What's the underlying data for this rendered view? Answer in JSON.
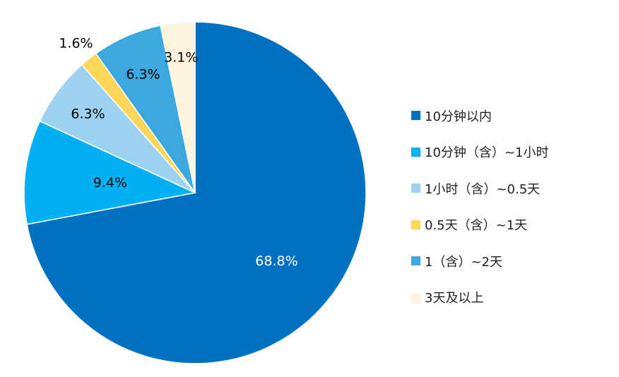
{
  "chart_data": {
    "type": "pie",
    "title": "",
    "start": "top",
    "direction": "clockwise",
    "categories": [
      "10分钟以内",
      "10分钟（含）~1小时",
      "1小时（含）~0.5天",
      "0.5天（含）~1天",
      "1（含）~2天",
      "3天及以上"
    ],
    "values": [
      68.8,
      9.4,
      6.3,
      1.6,
      6.3,
      3.1
    ],
    "labels": [
      "68.8%",
      "9.4%",
      "6.3%",
      "1.6%",
      "6.3%",
      "3.1%"
    ],
    "colors": [
      "#0070C0",
      "#00B0F0",
      "#9DD3F0",
      "#FFD55A",
      "#3DA8E0",
      "#FFF4DC"
    ],
    "label_colors": [
      "#FFFFFF",
      "#000000",
      "#000000",
      "#000000",
      "#000000",
      "#000000"
    ],
    "legend_position": "right"
  }
}
